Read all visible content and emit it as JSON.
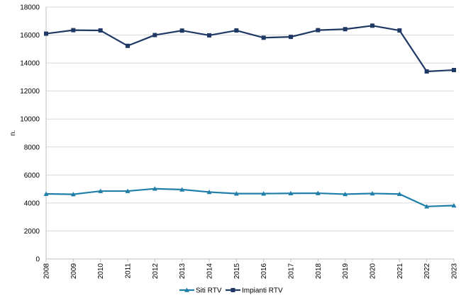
{
  "chart_data": {
    "type": "line",
    "title": "",
    "xlabel": "",
    "ylabel": "n.",
    "x": [
      "2008",
      "2009",
      "2010",
      "2011",
      "2012",
      "2013",
      "2014",
      "2015",
      "2016",
      "2017",
      "2018",
      "2019",
      "2020",
      "2021",
      "2022",
      "2023"
    ],
    "ylim": [
      0,
      18000
    ],
    "yticks": [
      "0",
      "2000",
      "4000",
      "6000",
      "8000",
      "10000",
      "12000",
      "14000",
      "16000",
      "18000"
    ],
    "grid": true,
    "legend_position": "bottom",
    "series": [
      {
        "name": "Siti RTV",
        "color": "#1f7fa8",
        "marker": "triangle",
        "values": [
          4650,
          4620,
          4850,
          4850,
          5020,
          4960,
          4780,
          4670,
          4670,
          4690,
          4700,
          4630,
          4680,
          4640,
          3750,
          3820
        ]
      },
      {
        "name": "Impianti RTV",
        "color": "#1f3864",
        "marker": "square",
        "values": [
          16100,
          16350,
          16330,
          15230,
          16000,
          16320,
          15980,
          16330,
          15810,
          15870,
          16350,
          16420,
          16670,
          16330,
          13400,
          13500
        ]
      }
    ]
  }
}
